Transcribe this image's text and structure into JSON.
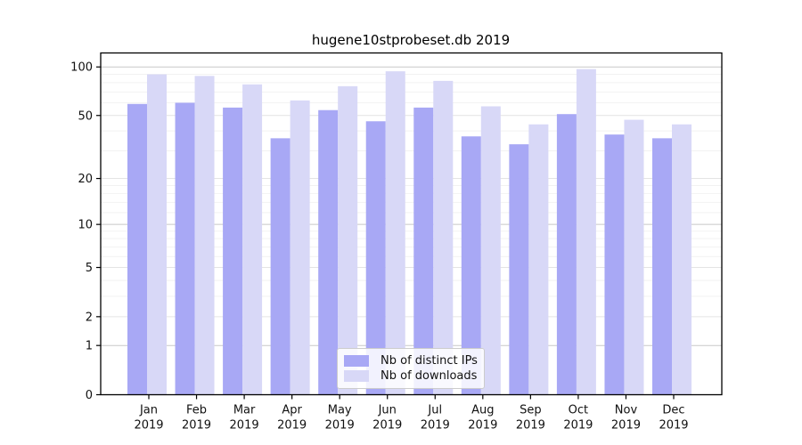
{
  "chart_data": {
    "type": "bar",
    "title": "hugene10stprobeset.db 2019",
    "categories": [
      "Jan",
      "Feb",
      "Mar",
      "Apr",
      "May",
      "Jun",
      "Jul",
      "Aug",
      "Sep",
      "Oct",
      "Nov",
      "Dec"
    ],
    "category_sublabel": "2019",
    "series": [
      {
        "name": "Nb of distinct IPs",
        "color": "#a8a8f5",
        "values": [
          59,
          60,
          56,
          36,
          54,
          46,
          56,
          37,
          33,
          51,
          38,
          36
        ]
      },
      {
        "name": "Nb of downloads",
        "color": "#d8d8f7",
        "values": [
          90,
          88,
          78,
          62,
          76,
          94,
          82,
          57,
          44,
          97,
          47,
          44
        ]
      }
    ],
    "y_axis": {
      "scale": "log1p",
      "ticks": [
        0,
        1,
        2,
        5,
        10,
        20,
        50,
        100
      ],
      "minor_ticks": [
        3,
        4,
        6,
        7,
        8,
        9,
        12,
        14,
        16,
        18,
        30,
        40,
        60,
        70,
        80,
        90
      ],
      "max": 122
    },
    "x_axis": {
      "label_line2": "2019"
    },
    "legend_position": "bottom-center",
    "grid": true,
    "colors": {
      "grid_major_pow10": "#c8c8c8",
      "grid_major": "#e4e4e4",
      "grid_minor": "#f2f2f2",
      "axis": "#000000",
      "text": "#111111",
      "background": "#ffffff"
    }
  }
}
